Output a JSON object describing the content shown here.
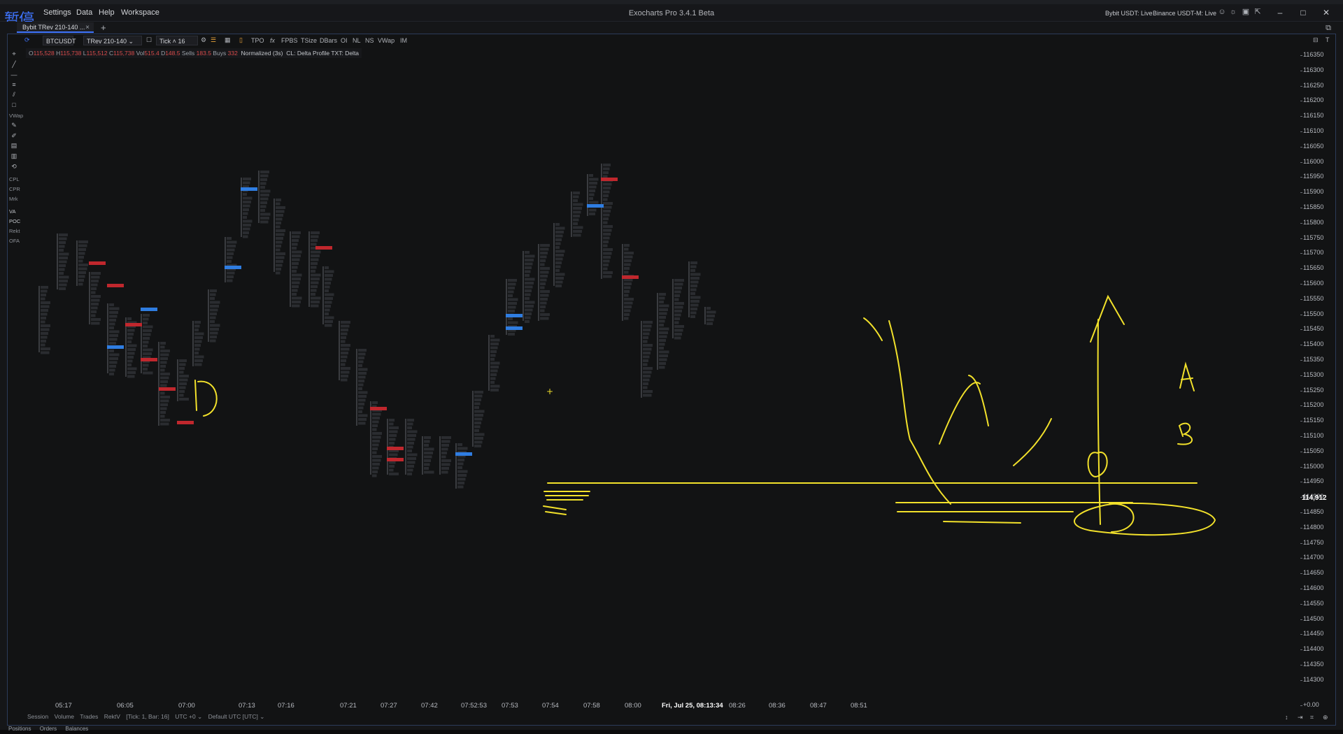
{
  "window": {
    "pause_indicator": "暂停",
    "menu": [
      "Settings",
      "Data",
      "Help",
      "Workspace"
    ],
    "title": "Exocharts Pro 3.4.1 Beta",
    "connections": [
      "Bybit USDT: Live",
      "Binance USDT-M: Live"
    ]
  },
  "tabs": {
    "active": "Bybit TRev 210-140 ...",
    "close": "×",
    "add": "+"
  },
  "toolbar": {
    "symbol": "BTCUSDT",
    "chart_type": "TRev 210-140",
    "aggregation": "Tick",
    "tick_value": "16",
    "items": [
      "TPO",
      "fx",
      "FPBS",
      "TSize",
      "DBars",
      "OI",
      "NL",
      "NS",
      "VWap",
      "IM"
    ]
  },
  "info": {
    "o_label": "O",
    "o": "115,528",
    "h_label": "H",
    "h": "115,738",
    "l_label": "L",
    "l": "115,512",
    "c_label": "C",
    "c": "115,738",
    "vol_label": "Vol",
    "vol": "515.4",
    "d_label": "D",
    "d": "148.5",
    "sells_label": "Sells",
    "sells": "183.5",
    "buys_label": "Buys",
    "buys": "332",
    "mode": "Normalized (3s)",
    "cluster": "CL: Delta Profile TXT: Delta"
  },
  "rail": {
    "labels": [
      "VWap",
      "CPL",
      "CPR",
      "Mrk",
      "VA",
      "POC",
      "Rekt",
      "OFA"
    ]
  },
  "price_axis": {
    "ticks": [
      "116350",
      "116300",
      "116250",
      "116200",
      "116150",
      "116100",
      "116050",
      "116000",
      "115950",
      "115900",
      "115850",
      "115800",
      "115750",
      "115700",
      "115650",
      "115600",
      "115550",
      "115500",
      "115450",
      "115400",
      "115350",
      "115300",
      "115250",
      "115200",
      "115150",
      "115100",
      "115050",
      "115000",
      "114950",
      "114900",
      "114850",
      "114800",
      "114750",
      "114700",
      "114650",
      "114600",
      "114550",
      "114500",
      "114450",
      "114400",
      "114350",
      "114300"
    ],
    "current": "114,912",
    "bottom": "+0.00"
  },
  "time_axis": {
    "labels": [
      "05:17",
      "06:05",
      "07:00",
      "07:13",
      "07:16",
      "07:21",
      "07:27",
      "07:42",
      "07:52:53",
      "07:53",
      "07:54",
      "07:58",
      "08:00",
      "08:26",
      "08:36",
      "08:47",
      "08:51"
    ],
    "cursor": "Fri, Jul 25, 08:13:34"
  },
  "bottom_settings": [
    "Session",
    "Volume",
    "Trades",
    "RektV",
    "[Tick: 1, Bar: 16]",
    "UTC +0 ⌄",
    "Default UTC [UTC] ⌄"
  ],
  "panel_tabs": [
    "Positions",
    "Orders",
    "Balances"
  ],
  "colors": {
    "accent": "#3f74ff",
    "sell": "#c0272d",
    "buy": "#2f7de1",
    "annotation": "#f2e12b"
  }
}
